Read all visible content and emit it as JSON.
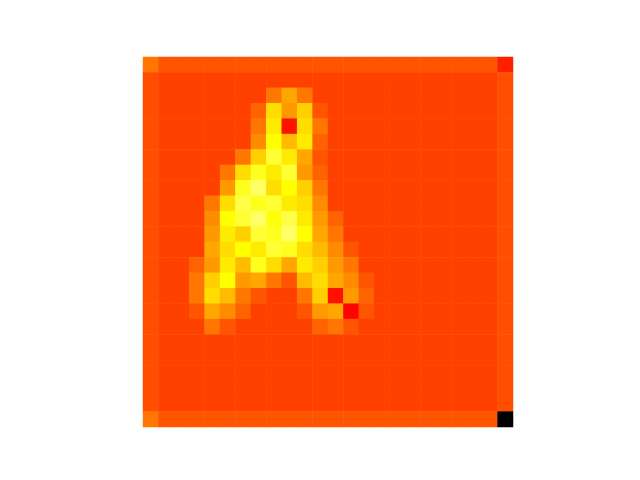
{
  "chart_data": {
    "type": "heatmap",
    "tick_labels": false,
    "color_range": [
      0,
      1
    ],
    "cells": [
      [
        0.55,
        0.5,
        0.5,
        0.5,
        0.5,
        0.5,
        0.5,
        0.5,
        0.5,
        0.5,
        0.5,
        0.5,
        0.5,
        0.5,
        0.5,
        0.5,
        0.5,
        0.5,
        0.5,
        0.5,
        0.5,
        0.5,
        0.5,
        0.42
      ],
      [
        0.49,
        0.47,
        0.47,
        0.47,
        0.47,
        0.47,
        0.47,
        0.47,
        0.47,
        0.47,
        0.47,
        0.47,
        0.47,
        0.47,
        0.47,
        0.47,
        0.47,
        0.47,
        0.47,
        0.47,
        0.47,
        0.47,
        0.47,
        0.49
      ],
      [
        0.49,
        0.47,
        0.47,
        0.47,
        0.47,
        0.47,
        0.47,
        0.47,
        0.55,
        0.62,
        0.55,
        0.47,
        0.47,
        0.47,
        0.47,
        0.47,
        0.47,
        0.47,
        0.47,
        0.47,
        0.47,
        0.47,
        0.47,
        0.49
      ],
      [
        0.49,
        0.47,
        0.47,
        0.47,
        0.47,
        0.47,
        0.47,
        0.52,
        0.7,
        0.6,
        0.68,
        0.5,
        0.47,
        0.47,
        0.47,
        0.47,
        0.47,
        0.47,
        0.47,
        0.47,
        0.47,
        0.47,
        0.47,
        0.49
      ],
      [
        0.49,
        0.47,
        0.47,
        0.47,
        0.47,
        0.47,
        0.47,
        0.55,
        0.72,
        0.4,
        0.7,
        0.55,
        0.47,
        0.47,
        0.47,
        0.47,
        0.47,
        0.47,
        0.47,
        0.47,
        0.47,
        0.47,
        0.47,
        0.49
      ],
      [
        0.49,
        0.47,
        0.47,
        0.47,
        0.47,
        0.47,
        0.47,
        0.58,
        0.75,
        0.65,
        0.72,
        0.52,
        0.47,
        0.47,
        0.47,
        0.47,
        0.47,
        0.47,
        0.47,
        0.47,
        0.47,
        0.47,
        0.47,
        0.49
      ],
      [
        0.49,
        0.47,
        0.47,
        0.47,
        0.47,
        0.47,
        0.55,
        0.68,
        0.8,
        0.72,
        0.62,
        0.5,
        0.47,
        0.47,
        0.47,
        0.47,
        0.47,
        0.47,
        0.47,
        0.47,
        0.47,
        0.47,
        0.47,
        0.49
      ],
      [
        0.49,
        0.47,
        0.47,
        0.47,
        0.47,
        0.55,
        0.7,
        0.78,
        0.72,
        0.8,
        0.6,
        0.52,
        0.47,
        0.47,
        0.47,
        0.47,
        0.47,
        0.47,
        0.47,
        0.47,
        0.47,
        0.47,
        0.47,
        0.49
      ],
      [
        0.49,
        0.47,
        0.47,
        0.47,
        0.47,
        0.6,
        0.78,
        0.85,
        0.7,
        0.75,
        0.68,
        0.55,
        0.47,
        0.47,
        0.47,
        0.47,
        0.47,
        0.47,
        0.47,
        0.47,
        0.47,
        0.47,
        0.47,
        0.49
      ],
      [
        0.49,
        0.47,
        0.47,
        0.47,
        0.55,
        0.7,
        0.82,
        0.78,
        0.8,
        0.72,
        0.7,
        0.58,
        0.47,
        0.47,
        0.47,
        0.47,
        0.47,
        0.47,
        0.47,
        0.47,
        0.47,
        0.47,
        0.47,
        0.49
      ],
      [
        0.49,
        0.47,
        0.47,
        0.47,
        0.58,
        0.75,
        0.8,
        0.85,
        0.76,
        0.82,
        0.72,
        0.6,
        0.52,
        0.47,
        0.47,
        0.47,
        0.47,
        0.47,
        0.47,
        0.47,
        0.47,
        0.47,
        0.47,
        0.49
      ],
      [
        0.49,
        0.47,
        0.47,
        0.47,
        0.6,
        0.72,
        0.68,
        0.8,
        0.78,
        0.85,
        0.75,
        0.62,
        0.55,
        0.47,
        0.47,
        0.47,
        0.47,
        0.47,
        0.47,
        0.47,
        0.47,
        0.47,
        0.47,
        0.49
      ],
      [
        0.49,
        0.47,
        0.47,
        0.47,
        0.62,
        0.7,
        0.75,
        0.72,
        0.8,
        0.78,
        0.7,
        0.65,
        0.58,
        0.5,
        0.47,
        0.47,
        0.47,
        0.47,
        0.47,
        0.47,
        0.47,
        0.47,
        0.47,
        0.49
      ],
      [
        0.49,
        0.47,
        0.47,
        0.52,
        0.6,
        0.72,
        0.65,
        0.78,
        0.7,
        0.62,
        0.72,
        0.68,
        0.6,
        0.55,
        0.47,
        0.47,
        0.47,
        0.47,
        0.47,
        0.47,
        0.47,
        0.47,
        0.47,
        0.49
      ],
      [
        0.49,
        0.47,
        0.47,
        0.55,
        0.68,
        0.75,
        0.6,
        0.62,
        0.55,
        0.5,
        0.65,
        0.7,
        0.62,
        0.58,
        0.5,
        0.47,
        0.47,
        0.47,
        0.47,
        0.47,
        0.47,
        0.47,
        0.47,
        0.49
      ],
      [
        0.49,
        0.47,
        0.47,
        0.55,
        0.7,
        0.65,
        0.55,
        0.5,
        0.47,
        0.47,
        0.55,
        0.68,
        0.4,
        0.6,
        0.52,
        0.47,
        0.47,
        0.47,
        0.47,
        0.47,
        0.47,
        0.47,
        0.47,
        0.49
      ],
      [
        0.49,
        0.47,
        0.47,
        0.5,
        0.62,
        0.58,
        0.52,
        0.47,
        0.47,
        0.47,
        0.5,
        0.6,
        0.62,
        0.38,
        0.5,
        0.47,
        0.47,
        0.47,
        0.47,
        0.47,
        0.47,
        0.47,
        0.47,
        0.49
      ],
      [
        0.49,
        0.47,
        0.47,
        0.47,
        0.55,
        0.5,
        0.47,
        0.47,
        0.47,
        0.47,
        0.47,
        0.52,
        0.55,
        0.5,
        0.47,
        0.47,
        0.47,
        0.47,
        0.47,
        0.47,
        0.47,
        0.47,
        0.47,
        0.49
      ],
      [
        0.49,
        0.47,
        0.47,
        0.47,
        0.47,
        0.47,
        0.47,
        0.47,
        0.47,
        0.47,
        0.47,
        0.47,
        0.47,
        0.47,
        0.47,
        0.47,
        0.47,
        0.47,
        0.47,
        0.47,
        0.47,
        0.47,
        0.47,
        0.49
      ],
      [
        0.49,
        0.47,
        0.47,
        0.47,
        0.47,
        0.47,
        0.47,
        0.47,
        0.47,
        0.47,
        0.47,
        0.47,
        0.47,
        0.47,
        0.47,
        0.47,
        0.47,
        0.47,
        0.47,
        0.47,
        0.47,
        0.47,
        0.47,
        0.49
      ],
      [
        0.49,
        0.47,
        0.47,
        0.47,
        0.47,
        0.47,
        0.47,
        0.47,
        0.47,
        0.47,
        0.47,
        0.47,
        0.47,
        0.47,
        0.47,
        0.47,
        0.47,
        0.47,
        0.47,
        0.47,
        0.47,
        0.47,
        0.47,
        0.49
      ],
      [
        0.49,
        0.47,
        0.47,
        0.47,
        0.47,
        0.47,
        0.47,
        0.47,
        0.47,
        0.47,
        0.47,
        0.47,
        0.47,
        0.47,
        0.47,
        0.47,
        0.47,
        0.47,
        0.47,
        0.47,
        0.47,
        0.47,
        0.47,
        0.49
      ],
      [
        0.49,
        0.47,
        0.47,
        0.47,
        0.47,
        0.47,
        0.47,
        0.47,
        0.47,
        0.47,
        0.47,
        0.47,
        0.47,
        0.47,
        0.47,
        0.47,
        0.47,
        0.47,
        0.47,
        0.47,
        0.47,
        0.47,
        0.47,
        0.49
      ],
      [
        0.55,
        0.5,
        0.5,
        0.5,
        0.5,
        0.5,
        0.5,
        0.5,
        0.5,
        0.5,
        0.5,
        0.5,
        0.5,
        0.5,
        0.5,
        0.5,
        0.5,
        0.5,
        0.5,
        0.5,
        0.5,
        0.5,
        0.5,
        0.0
      ]
    ]
  }
}
